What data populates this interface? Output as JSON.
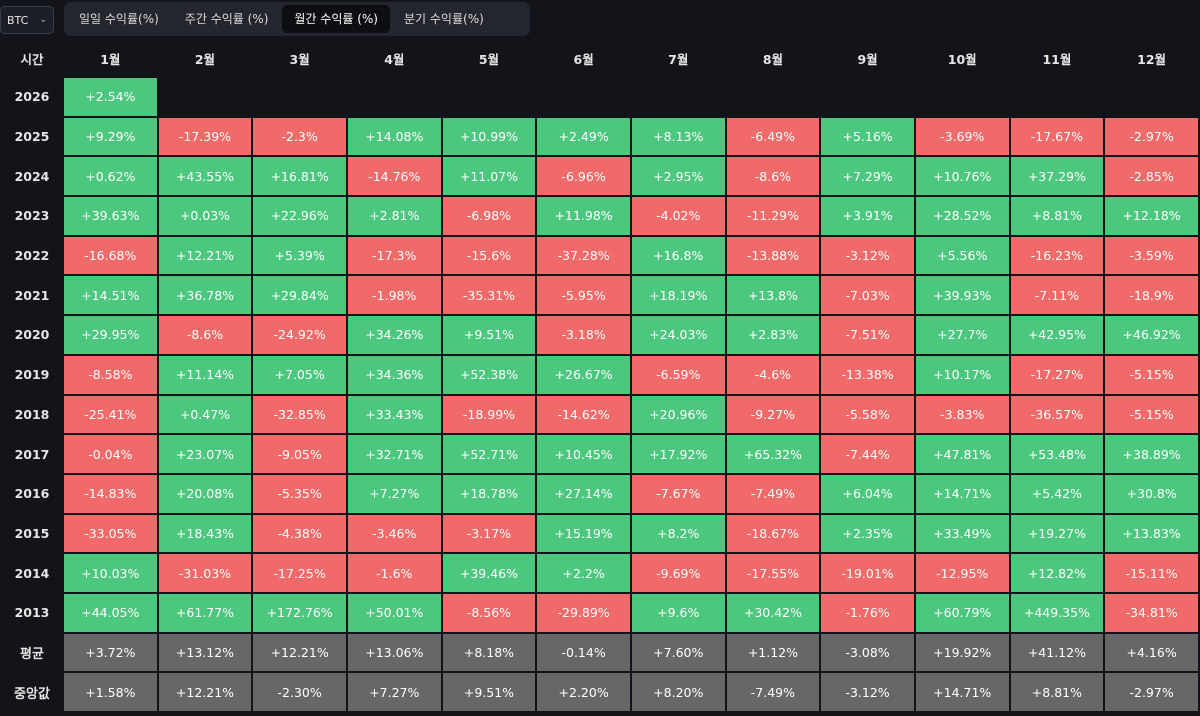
{
  "asset_selector": {
    "value": "BTC"
  },
  "tabs": [
    {
      "label": "일일 수익률(%)",
      "active": false
    },
    {
      "label": "주간 수익률 (%)",
      "active": false
    },
    {
      "label": "월간 수익률 (%)",
      "active": true
    },
    {
      "label": "분기 수익률(%)",
      "active": false
    }
  ],
  "table": {
    "corner_label": "시간",
    "months": [
      "1월",
      "2월",
      "3월",
      "4월",
      "5월",
      "6월",
      "7월",
      "8월",
      "9월",
      "10월",
      "11월",
      "12월"
    ],
    "rows": [
      {
        "year": "2026",
        "values": [
          "+2.54%",
          "",
          "",
          "",
          "",
          "",
          "",
          "",
          "",
          "",
          "",
          ""
        ]
      },
      {
        "year": "2025",
        "values": [
          "+9.29%",
          "-17.39%",
          "-2.3%",
          "+14.08%",
          "+10.99%",
          "+2.49%",
          "+8.13%",
          "-6.49%",
          "+5.16%",
          "-3.69%",
          "-17.67%",
          "-2.97%"
        ]
      },
      {
        "year": "2024",
        "values": [
          "+0.62%",
          "+43.55%",
          "+16.81%",
          "-14.76%",
          "+11.07%",
          "-6.96%",
          "+2.95%",
          "-8.6%",
          "+7.29%",
          "+10.76%",
          "+37.29%",
          "-2.85%"
        ]
      },
      {
        "year": "2023",
        "values": [
          "+39.63%",
          "+0.03%",
          "+22.96%",
          "+2.81%",
          "-6.98%",
          "+11.98%",
          "-4.02%",
          "-11.29%",
          "+3.91%",
          "+28.52%",
          "+8.81%",
          "+12.18%"
        ]
      },
      {
        "year": "2022",
        "values": [
          "-16.68%",
          "+12.21%",
          "+5.39%",
          "-17.3%",
          "-15.6%",
          "-37.28%",
          "+16.8%",
          "-13.88%",
          "-3.12%",
          "+5.56%",
          "-16.23%",
          "-3.59%"
        ]
      },
      {
        "year": "2021",
        "values": [
          "+14.51%",
          "+36.78%",
          "+29.84%",
          "-1.98%",
          "-35.31%",
          "-5.95%",
          "+18.19%",
          "+13.8%",
          "-7.03%",
          "+39.93%",
          "-7.11%",
          "-18.9%"
        ]
      },
      {
        "year": "2020",
        "values": [
          "+29.95%",
          "-8.6%",
          "-24.92%",
          "+34.26%",
          "+9.51%",
          "-3.18%",
          "+24.03%",
          "+2.83%",
          "-7.51%",
          "+27.7%",
          "+42.95%",
          "+46.92%"
        ]
      },
      {
        "year": "2019",
        "values": [
          "-8.58%",
          "+11.14%",
          "+7.05%",
          "+34.36%",
          "+52.38%",
          "+26.67%",
          "-6.59%",
          "-4.6%",
          "-13.38%",
          "+10.17%",
          "-17.27%",
          "-5.15%"
        ]
      },
      {
        "year": "2018",
        "values": [
          "-25.41%",
          "+0.47%",
          "-32.85%",
          "+33.43%",
          "-18.99%",
          "-14.62%",
          "+20.96%",
          "-9.27%",
          "-5.58%",
          "-3.83%",
          "-36.57%",
          "-5.15%"
        ]
      },
      {
        "year": "2017",
        "values": [
          "-0.04%",
          "+23.07%",
          "-9.05%",
          "+32.71%",
          "+52.71%",
          "+10.45%",
          "+17.92%",
          "+65.32%",
          "-7.44%",
          "+47.81%",
          "+53.48%",
          "+38.89%"
        ]
      },
      {
        "year": "2016",
        "values": [
          "-14.83%",
          "+20.08%",
          "-5.35%",
          "+7.27%",
          "+18.78%",
          "+27.14%",
          "-7.67%",
          "-7.49%",
          "+6.04%",
          "+14.71%",
          "+5.42%",
          "+30.8%"
        ]
      },
      {
        "year": "2015",
        "values": [
          "-33.05%",
          "+18.43%",
          "-4.38%",
          "-3.46%",
          "-3.17%",
          "+15.19%",
          "+8.2%",
          "-18.67%",
          "+2.35%",
          "+33.49%",
          "+19.27%",
          "+13.83%"
        ]
      },
      {
        "year": "2014",
        "values": [
          "+10.03%",
          "-31.03%",
          "-17.25%",
          "-1.6%",
          "+39.46%",
          "+2.2%",
          "-9.69%",
          "-17.55%",
          "-19.01%",
          "-12.95%",
          "+12.82%",
          "-15.11%"
        ]
      },
      {
        "year": "2013",
        "values": [
          "+44.05%",
          "+61.77%",
          "+172.76%",
          "+50.01%",
          "-8.56%",
          "-29.89%",
          "+9.6%",
          "+30.42%",
          "-1.76%",
          "+60.79%",
          "+449.35%",
          "-34.81%"
        ]
      }
    ],
    "stats": [
      {
        "label": "평균",
        "values": [
          "+3.72%",
          "+13.12%",
          "+12.21%",
          "+13.06%",
          "+8.18%",
          "-0.14%",
          "+7.60%",
          "+1.12%",
          "-3.08%",
          "+19.92%",
          "+41.12%",
          "+4.16%"
        ]
      },
      {
        "label": "중앙값",
        "values": [
          "+1.58%",
          "+12.21%",
          "-2.30%",
          "+7.27%",
          "+9.51%",
          "+2.20%",
          "+8.20%",
          "-7.49%",
          "-3.12%",
          "+14.71%",
          "+8.81%",
          "-2.97%"
        ]
      }
    ]
  },
  "colors": {
    "positive": "#4cc77e",
    "negative": "#ef6a68",
    "stat": "#676767",
    "background": "#121419"
  }
}
